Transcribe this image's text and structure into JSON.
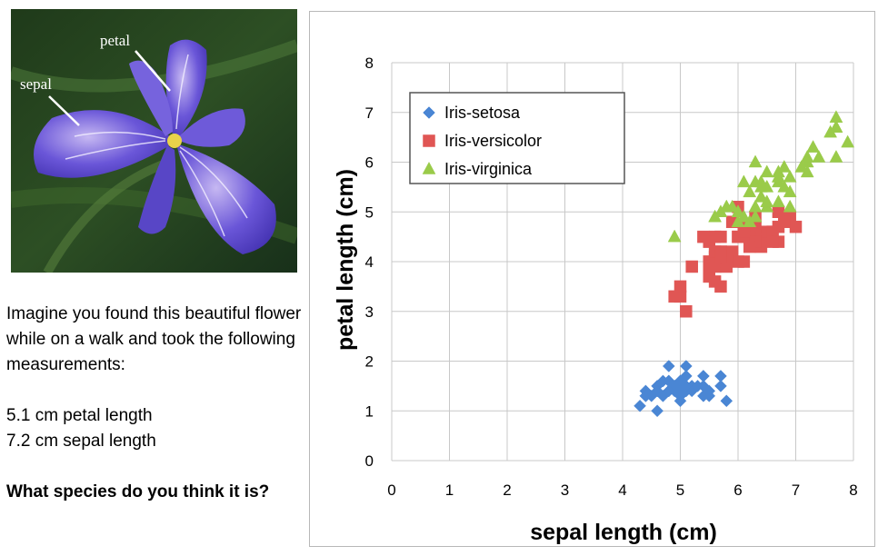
{
  "photo": {
    "labels": {
      "petal": "petal",
      "sepal": "sepal"
    }
  },
  "question": {
    "intro": "Imagine you found this beautiful flower while on a walk and took the following measurements:",
    "measure_1": "5.1 cm petal length",
    "measure_2": "7.2 cm sepal length",
    "prompt": "What species do you think it is?"
  },
  "chart_data": {
    "type": "scatter",
    "xlabel": "sepal length (cm)",
    "ylabel": "petal length (cm)",
    "xlim": [
      0,
      8
    ],
    "ylim": [
      0,
      8
    ],
    "xticks": [
      0,
      1,
      2,
      3,
      4,
      5,
      6,
      7,
      8
    ],
    "yticks": [
      0,
      1,
      2,
      3,
      4,
      5,
      6,
      7,
      8
    ],
    "grid": true,
    "legend_position": "top-left",
    "series": [
      {
        "name": "Iris-setosa",
        "marker": "diamond",
        "color": "#4a86d4",
        "points": [
          [
            5.1,
            1.4
          ],
          [
            4.9,
            1.4
          ],
          [
            4.7,
            1.3
          ],
          [
            4.6,
            1.5
          ],
          [
            5.0,
            1.4
          ],
          [
            5.4,
            1.7
          ],
          [
            4.6,
            1.4
          ],
          [
            5.0,
            1.5
          ],
          [
            4.4,
            1.4
          ],
          [
            4.9,
            1.5
          ],
          [
            5.4,
            1.5
          ],
          [
            4.8,
            1.6
          ],
          [
            4.8,
            1.4
          ],
          [
            4.3,
            1.1
          ],
          [
            5.8,
            1.2
          ],
          [
            5.7,
            1.5
          ],
          [
            5.4,
            1.3
          ],
          [
            5.1,
            1.4
          ],
          [
            5.7,
            1.7
          ],
          [
            5.1,
            1.5
          ],
          [
            5.4,
            1.7
          ],
          [
            5.1,
            1.5
          ],
          [
            4.6,
            1.0
          ],
          [
            5.1,
            1.7
          ],
          [
            4.8,
            1.9
          ],
          [
            5.0,
            1.6
          ],
          [
            5.0,
            1.6
          ],
          [
            5.2,
            1.5
          ],
          [
            5.2,
            1.4
          ],
          [
            4.7,
            1.6
          ],
          [
            4.8,
            1.6
          ],
          [
            5.5,
            1.4
          ],
          [
            4.9,
            1.5
          ],
          [
            5.0,
            1.2
          ],
          [
            5.5,
            1.3
          ],
          [
            4.4,
            1.3
          ],
          [
            5.1,
            1.5
          ],
          [
            5.0,
            1.3
          ],
          [
            4.5,
            1.3
          ],
          [
            4.4,
            1.3
          ],
          [
            5.0,
            1.6
          ],
          [
            5.1,
            1.9
          ],
          [
            4.8,
            1.4
          ],
          [
            5.3,
            1.5
          ],
          [
            5.0,
            1.4
          ]
        ]
      },
      {
        "name": "Iris-versicolor",
        "marker": "square",
        "color": "#e05654",
        "points": [
          [
            7.0,
            4.7
          ],
          [
            6.4,
            4.5
          ],
          [
            6.9,
            4.9
          ],
          [
            5.5,
            4.0
          ],
          [
            6.5,
            4.6
          ],
          [
            5.7,
            4.5
          ],
          [
            6.3,
            4.7
          ],
          [
            4.9,
            3.3
          ],
          [
            6.6,
            4.6
          ],
          [
            5.2,
            3.9
          ],
          [
            5.0,
            3.5
          ],
          [
            5.9,
            4.2
          ],
          [
            6.0,
            4.0
          ],
          [
            6.1,
            4.7
          ],
          [
            5.6,
            3.6
          ],
          [
            6.7,
            4.4
          ],
          [
            5.6,
            4.5
          ],
          [
            5.8,
            4.1
          ],
          [
            6.2,
            4.5
          ],
          [
            5.6,
            3.9
          ],
          [
            5.9,
            4.8
          ],
          [
            6.1,
            4.0
          ],
          [
            6.3,
            4.9
          ],
          [
            6.1,
            4.7
          ],
          [
            6.4,
            4.3
          ],
          [
            6.6,
            4.4
          ],
          [
            6.8,
            4.8
          ],
          [
            6.7,
            5.0
          ],
          [
            6.0,
            4.5
          ],
          [
            5.7,
            3.5
          ],
          [
            5.5,
            3.8
          ],
          [
            5.5,
            3.7
          ],
          [
            5.8,
            3.9
          ],
          [
            6.0,
            5.1
          ],
          [
            5.4,
            4.5
          ],
          [
            6.0,
            4.5
          ],
          [
            6.7,
            4.7
          ],
          [
            6.3,
            4.4
          ],
          [
            5.6,
            4.1
          ],
          [
            5.5,
            4.0
          ],
          [
            5.5,
            4.4
          ],
          [
            6.1,
            4.6
          ],
          [
            5.8,
            4.0
          ],
          [
            5.0,
            3.3
          ],
          [
            5.6,
            4.2
          ],
          [
            5.7,
            4.2
          ],
          [
            5.7,
            4.2
          ],
          [
            6.2,
            4.3
          ],
          [
            5.1,
            3.0
          ],
          [
            5.7,
            4.1
          ]
        ]
      },
      {
        "name": "Iris-virginica",
        "marker": "triangle",
        "color": "#9acb4a",
        "points": [
          [
            6.3,
            6.0
          ],
          [
            5.8,
            5.1
          ],
          [
            7.1,
            5.9
          ],
          [
            6.3,
            5.6
          ],
          [
            6.5,
            5.8
          ],
          [
            7.6,
            6.6
          ],
          [
            4.9,
            4.5
          ],
          [
            7.3,
            6.3
          ],
          [
            6.7,
            5.8
          ],
          [
            7.2,
            6.1
          ],
          [
            6.5,
            5.1
          ],
          [
            6.4,
            5.3
          ],
          [
            6.8,
            5.5
          ],
          [
            5.7,
            5.0
          ],
          [
            5.8,
            5.1
          ],
          [
            6.4,
            5.3
          ],
          [
            6.5,
            5.5
          ],
          [
            7.7,
            6.7
          ],
          [
            7.7,
            6.9
          ],
          [
            6.0,
            5.0
          ],
          [
            6.9,
            5.7
          ],
          [
            5.6,
            4.9
          ],
          [
            7.7,
            6.7
          ],
          [
            6.3,
            4.9
          ],
          [
            6.7,
            5.7
          ],
          [
            7.2,
            6.0
          ],
          [
            6.2,
            4.8
          ],
          [
            6.1,
            4.9
          ],
          [
            6.4,
            5.6
          ],
          [
            7.2,
            5.8
          ],
          [
            7.4,
            6.1
          ],
          [
            7.9,
            6.4
          ],
          [
            6.3,
            5.1
          ],
          [
            6.1,
            5.6
          ],
          [
            7.7,
            6.1
          ],
          [
            6.4,
            5.5
          ],
          [
            6.0,
            4.8
          ],
          [
            6.9,
            5.4
          ],
          [
            6.7,
            5.6
          ],
          [
            6.9,
            5.1
          ],
          [
            6.8,
            5.9
          ],
          [
            6.7,
            5.7
          ],
          [
            6.7,
            5.2
          ],
          [
            6.5,
            5.2
          ],
          [
            6.2,
            5.4
          ],
          [
            5.9,
            5.1
          ]
        ]
      }
    ]
  }
}
